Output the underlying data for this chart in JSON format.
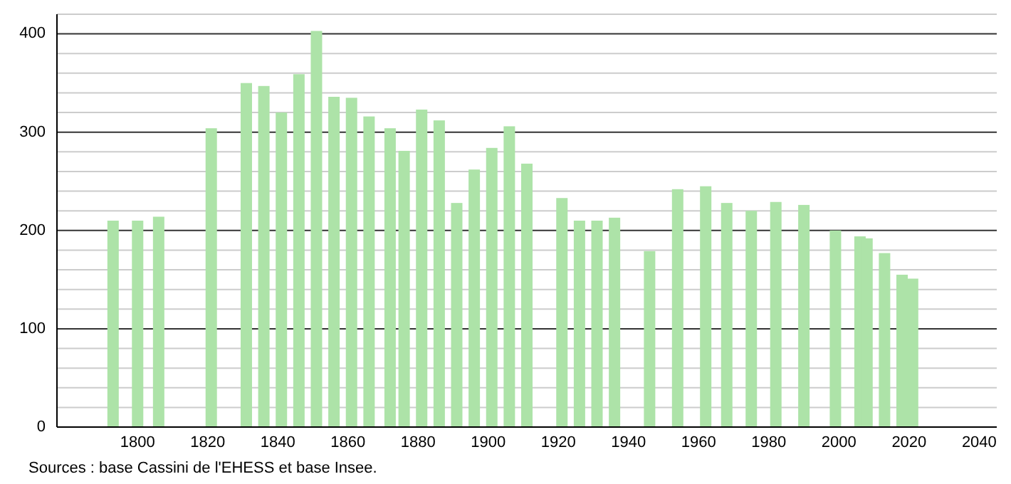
{
  "chart_data": {
    "type": "bar",
    "x": [
      1793,
      1800,
      1806,
      1821,
      1831,
      1836,
      1841,
      1846,
      1851,
      1856,
      1861,
      1866,
      1872,
      1876,
      1881,
      1886,
      1891,
      1896,
      1901,
      1906,
      1911,
      1921,
      1926,
      1931,
      1936,
      1946,
      1954,
      1962,
      1968,
      1975,
      1982,
      1990,
      1999,
      2006,
      2008,
      2013,
      2018,
      2021
    ],
    "values": [
      210,
      210,
      214,
      304,
      350,
      347,
      320,
      359,
      403,
      336,
      335,
      316,
      304,
      281,
      323,
      312,
      228,
      262,
      284,
      306,
      268,
      233,
      210,
      210,
      213,
      179,
      242,
      245,
      228,
      220,
      229,
      226,
      200,
      194,
      192,
      177,
      155,
      151
    ],
    "color": "#ade3a8",
    "xlim": [
      1777,
      2045
    ],
    "xticks": [
      1800,
      1820,
      1840,
      1860,
      1880,
      1900,
      1920,
      1940,
      1960,
      1980,
      2000,
      2020,
      2040
    ],
    "ylim": [
      0,
      420
    ],
    "yticks": [
      0,
      {
        "value": 20,
        "label": null
      },
      {
        "value": 40,
        "label": null
      },
      {
        "value": 60,
        "label": null
      },
      {
        "value": 80,
        "label": null
      },
      100,
      {
        "value": 120,
        "label": null
      },
      {
        "value": 140,
        "label": null
      },
      {
        "value": 160,
        "label": null
      },
      {
        "value": 180,
        "label": null
      },
      200,
      {
        "value": 220,
        "label": null
      },
      {
        "value": 240,
        "label": null
      },
      {
        "value": 260,
        "label": null
      },
      {
        "value": 280,
        "label": null
      },
      300,
      {
        "value": 320,
        "label": null
      },
      {
        "value": 340,
        "label": null
      },
      {
        "value": 360,
        "label": null
      },
      {
        "value": 380,
        "label": null
      },
      400,
      {
        "value": 420,
        "label": null
      }
    ],
    "grid": true,
    "annotations": [
      "Sources : base Cassini de l'EHESS et base Insee."
    ]
  }
}
